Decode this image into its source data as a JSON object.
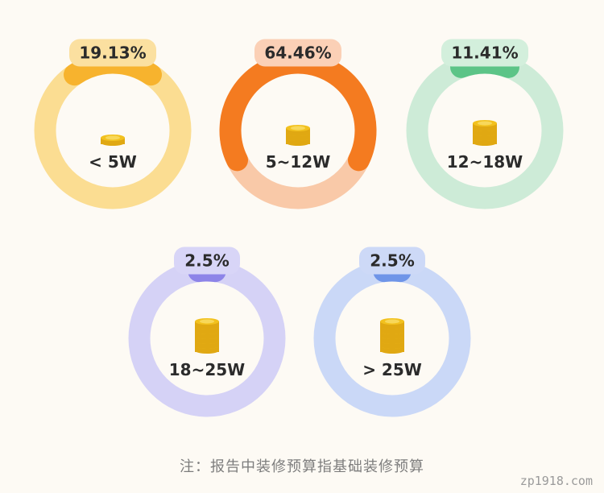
{
  "chart_data": {
    "type": "pie",
    "unit": "%",
    "categories": [
      "< 5W",
      "5~12W",
      "12~18W",
      "18~25W",
      "> 25W"
    ],
    "values": [
      19.13,
      64.46,
      11.41,
      2.5,
      2.5
    ],
    "value_labels": [
      "19.13%",
      "64.46%",
      "11.41%",
      "2.5%",
      "2.5%"
    ],
    "colors": {
      "arc": [
        "#f7b32e",
        "#f47b20",
        "#5cc487",
        "#8d84e8",
        "#6f95e8"
      ],
      "ring": [
        "#fbdd92",
        "#f9c9a8",
        "#cdebd7",
        "#d5d2f6",
        "#cad8f7"
      ],
      "badge": [
        "#fbe0a0",
        "#fbd0b6",
        "#d3efdc",
        "#d8d5f7",
        "#cdd9f7"
      ],
      "coin": "#f2c11e"
    }
  },
  "footnote": "注：报告中装修预算指基础装修预算",
  "watermark": "zp1918.com"
}
